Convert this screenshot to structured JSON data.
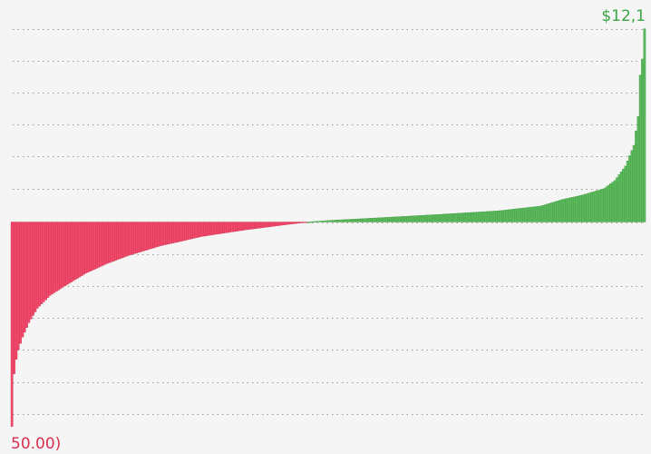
{
  "labels": {
    "max": "$12,1",
    "min": "50.00)"
  },
  "colors": {
    "positive": "#5cb85c",
    "positive_edge": "#3f9a3f",
    "negative": "#f2496b",
    "negative_edge": "#c9314f",
    "gridline": "#9a9a9a",
    "max_label": "#3aa542",
    "min_label": "#d9304f",
    "background": "#f5f5f5"
  },
  "chart_data": {
    "type": "bar",
    "title": "",
    "xlabel": "",
    "ylabel": "",
    "grid": true,
    "bar_count": 300,
    "sorted": "ascending",
    "ylim": [
      -6400,
      6050
    ],
    "gridline_values": [
      6050,
      5050,
      4050,
      3050,
      2050,
      1050,
      0,
      -1000,
      -2000,
      -3000,
      -4000,
      -5000,
      -6000
    ],
    "value_profile": [
      [
        0,
        -6400
      ],
      [
        1,
        -4750
      ],
      [
        2,
        -4300
      ],
      [
        3,
        -4000
      ],
      [
        5,
        -3600
      ],
      [
        8,
        -3150
      ],
      [
        12,
        -2700
      ],
      [
        18,
        -2300
      ],
      [
        25,
        -2000
      ],
      [
        35,
        -1600
      ],
      [
        45,
        -1300
      ],
      [
        55,
        -1050
      ],
      [
        70,
        -750
      ],
      [
        90,
        -450
      ],
      [
        110,
        -250
      ],
      [
        130,
        -80
      ],
      [
        140,
        0
      ],
      [
        150,
        50
      ],
      [
        170,
        120
      ],
      [
        200,
        230
      ],
      [
        230,
        350
      ],
      [
        250,
        500
      ],
      [
        260,
        700
      ],
      [
        270,
        850
      ],
      [
        280,
        1050
      ],
      [
        285,
        1300
      ],
      [
        290,
        1750
      ],
      [
        294,
        2400
      ],
      [
        296,
        3300
      ],
      [
        297,
        4600
      ],
      [
        298,
        5100
      ],
      [
        299,
        6050
      ]
    ]
  }
}
